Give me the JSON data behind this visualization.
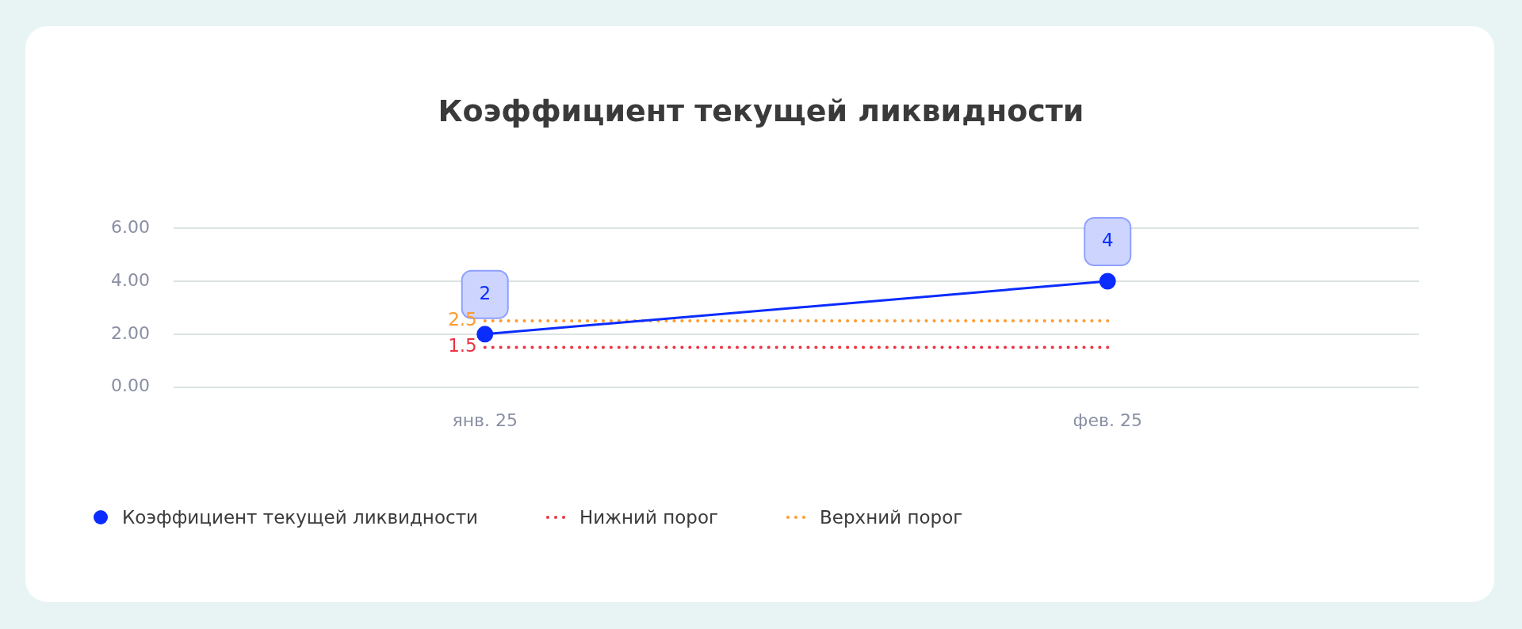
{
  "chart_data": {
    "type": "line",
    "title": "Коэффициент текущей ликвидности",
    "categories": [
      "янв. 25",
      "фев. 25"
    ],
    "series": [
      {
        "name": "Коэффициент текущей ликвидности",
        "color": "#0a2cff",
        "values": [
          2,
          4
        ],
        "value_labels": [
          "2",
          "4"
        ],
        "marker": "circle",
        "line_style": "solid"
      },
      {
        "name": "Нижний порог",
        "color": "#ee3344",
        "values": [
          1.5,
          1.5
        ],
        "value_labels": [
          "1.5",
          null
        ],
        "marker": "none",
        "line_style": "dotted"
      },
      {
        "name": "Верхний порог",
        "color": "#ff9a2e",
        "values": [
          2.5,
          2.5
        ],
        "value_labels": [
          "2.5",
          null
        ],
        "marker": "none",
        "line_style": "dotted"
      }
    ],
    "ylim": [
      0,
      6
    ],
    "yticks": [
      {
        "value": 0,
        "label": "0.00"
      },
      {
        "value": 2,
        "label": "2.00"
      },
      {
        "value": 4,
        "label": "4.00"
      },
      {
        "value": 6,
        "label": "6.00"
      }
    ],
    "grid": "y",
    "legend": "bottom left"
  }
}
